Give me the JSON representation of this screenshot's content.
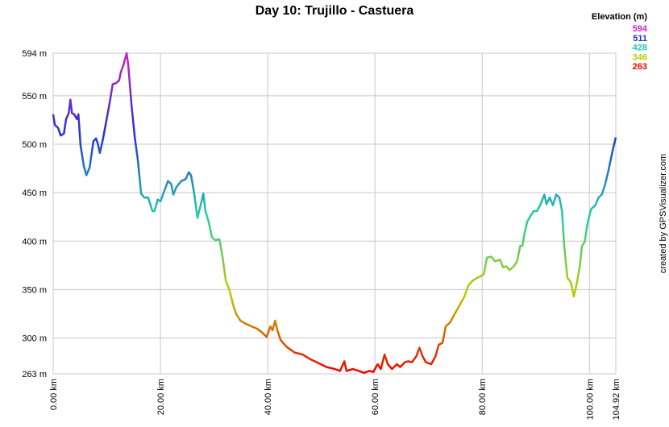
{
  "chart_data": {
    "type": "line",
    "title": "Day 10: Trujillo - Castuera",
    "credit": "created by GPSVisualizer.com",
    "legend": {
      "title": "Elevation (m)",
      "values": [
        594,
        511,
        428,
        346,
        263
      ],
      "colors": [
        "#cc22cc",
        "#2233cc",
        "#22ccaa",
        "#bbcc00",
        "#ee0000"
      ]
    },
    "grid": true,
    "xlim": [
      0,
      104.92
    ],
    "ylim": [
      263,
      594
    ],
    "xticks": [
      {
        "value": 0,
        "label": "0.00 km"
      },
      {
        "value": 20,
        "label": "20.00 km"
      },
      {
        "value": 40,
        "label": "40.00 km"
      },
      {
        "value": 60,
        "label": "60.00 km"
      },
      {
        "value": 80,
        "label": "80.00 km"
      },
      {
        "value": 100,
        "label": "100.00 km"
      },
      {
        "value": 104.92,
        "label": "104.92 km"
      }
    ],
    "yticks": [
      {
        "value": 263,
        "label": "263 m"
      },
      {
        "value": 300,
        "label": "300 m"
      },
      {
        "value": 350,
        "label": "350 m"
      },
      {
        "value": 400,
        "label": "400 m"
      },
      {
        "value": 450,
        "label": "450 m"
      },
      {
        "value": 500,
        "label": "500 m"
      },
      {
        "value": 550,
        "label": "550 m"
      },
      {
        "value": 594,
        "label": "594 m"
      }
    ],
    "x": [
      0,
      0.3,
      0.9,
      1.4,
      2,
      2.4,
      2.9,
      3.2,
      3.5,
      3.9,
      4.4,
      4.7,
      5.1,
      5.7,
      6.2,
      6.8,
      7.5,
      8.0,
      8.3,
      8.7,
      9.3,
      9.9,
      10.5,
      11.1,
      11.7,
      12.3,
      12.6,
      13.1,
      13.7,
      14.0,
      14.6,
      15.2,
      15.8,
      16.4,
      17.0,
      17.7,
      18.5,
      18.9,
      19.5,
      20.0,
      20.8,
      21.4,
      22.0,
      22.4,
      23.0,
      23.9,
      24.7,
      25.3,
      25.7,
      26.3,
      26.9,
      27.5,
      28.0,
      28.4,
      29.0,
      29.6,
      30.2,
      31.0,
      31.6,
      32.2,
      32.9,
      33.5,
      34.1,
      34.9,
      35.8,
      37.0,
      37.9,
      38.9,
      39.8,
      40.5,
      40.9,
      41.4,
      41.8,
      42.4,
      43.5,
      45.0,
      46.5,
      48.0,
      49.5,
      51.0,
      52.5,
      53.5,
      54.3,
      54.7,
      55.9,
      57.0,
      58.0,
      58.9,
      59.7,
      60.5,
      61.1,
      61.8,
      62.4,
      63.2,
      64.1,
      64.7,
      65.6,
      66.2,
      66.9,
      67.7,
      68.3,
      68.9,
      69.5,
      70.5,
      71.3,
      71.9,
      72.6,
      73.2,
      74.0,
      75.0,
      75.8,
      76.7,
      77.4,
      78.2,
      79.0,
      79.8,
      80.3,
      80.9,
      81.7,
      82.4,
      83.3,
      83.9,
      84.5,
      85.1,
      85.9,
      86.5,
      87.1,
      87.5,
      87.9,
      88.4,
      89.0,
      89.6,
      90.2,
      90.8,
      91.6,
      92.0,
      92.6,
      93.2,
      93.8,
      94.4,
      94.9,
      95.3,
      95.9,
      96.5,
      97.1,
      97.7,
      98.2,
      98.6,
      99.1,
      99.7,
      100.3,
      101.1,
      101.7,
      102.3,
      102.9,
      103.6,
      104.4,
      104.92
    ],
    "values": [
      531,
      520,
      517,
      509,
      511,
      526,
      532,
      546,
      532,
      531,
      526,
      531,
      499,
      478,
      468,
      476,
      503,
      506,
      501,
      491,
      506,
      524,
      542,
      562,
      563,
      566,
      574,
      582,
      594,
      582,
      541,
      508,
      483,
      449,
      445,
      445,
      431,
      431,
      443,
      441,
      453,
      462,
      459,
      448,
      456,
      462,
      464,
      471,
      468,
      449,
      424,
      437,
      449,
      431,
      420,
      404,
      401,
      402,
      383,
      359,
      349,
      335,
      325,
      318,
      315,
      312,
      310,
      306,
      301,
      312,
      308,
      318,
      308,
      298,
      291,
      285,
      283,
      278,
      274,
      270,
      268,
      266,
      276,
      266,
      268,
      266,
      264,
      266,
      265,
      273,
      268,
      283,
      273,
      268,
      273,
      270,
      275,
      276,
      275,
      281,
      290,
      281,
      275,
      273,
      281,
      293,
      295,
      312,
      316,
      326,
      334,
      343,
      354,
      359,
      362,
      364,
      366,
      383,
      384,
      379,
      381,
      373,
      374,
      370,
      374,
      379,
      395,
      395,
      408,
      420,
      426,
      431,
      431,
      437,
      448,
      438,
      445,
      437,
      448,
      445,
      431,
      395,
      362,
      358,
      343,
      358,
      374,
      395,
      399,
      420,
      433,
      437,
      445,
      448,
      458,
      474,
      495,
      507
    ]
  }
}
